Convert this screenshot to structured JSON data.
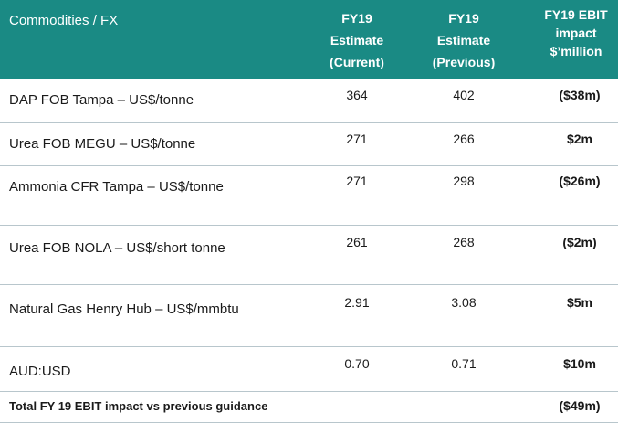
{
  "header": {
    "title": "Commodities / FX",
    "col1": [
      "FY19",
      "Estimate",
      "(Current)"
    ],
    "col2": [
      "FY19",
      "Estimate",
      "(Previous)"
    ],
    "col3": [
      "FY19 EBIT",
      "impact",
      "$’million"
    ]
  },
  "rows": [
    {
      "label": "DAP FOB Tampa – US$/tonne",
      "current": "364",
      "previous": "402",
      "impact": "($38m)"
    },
    {
      "label": "Urea FOB MEGU – US$/tonne",
      "current": "271",
      "previous": "266",
      "impact": "$2m"
    },
    {
      "label": "Ammonia CFR Tampa – US$/tonne",
      "current": "271",
      "previous": "298",
      "impact": "($26m)"
    },
    {
      "label": "Urea FOB NOLA – US$/short tonne",
      "current": "261",
      "previous": "268",
      "impact": "($2m)"
    },
    {
      "label": "Natural Gas Henry Hub – US$/mmbtu",
      "current": "2.91",
      "previous": "3.08",
      "impact": "$5m"
    },
    {
      "label": "AUD:USD",
      "current": "0.70",
      "previous": "0.71",
      "impact": "$10m"
    }
  ],
  "total": {
    "label": "Total FY 19 EBIT impact vs previous guidance",
    "impact": "($49m)"
  },
  "colors": {
    "header_bg": "#1a8a84",
    "divider": "#b8c6cc"
  }
}
